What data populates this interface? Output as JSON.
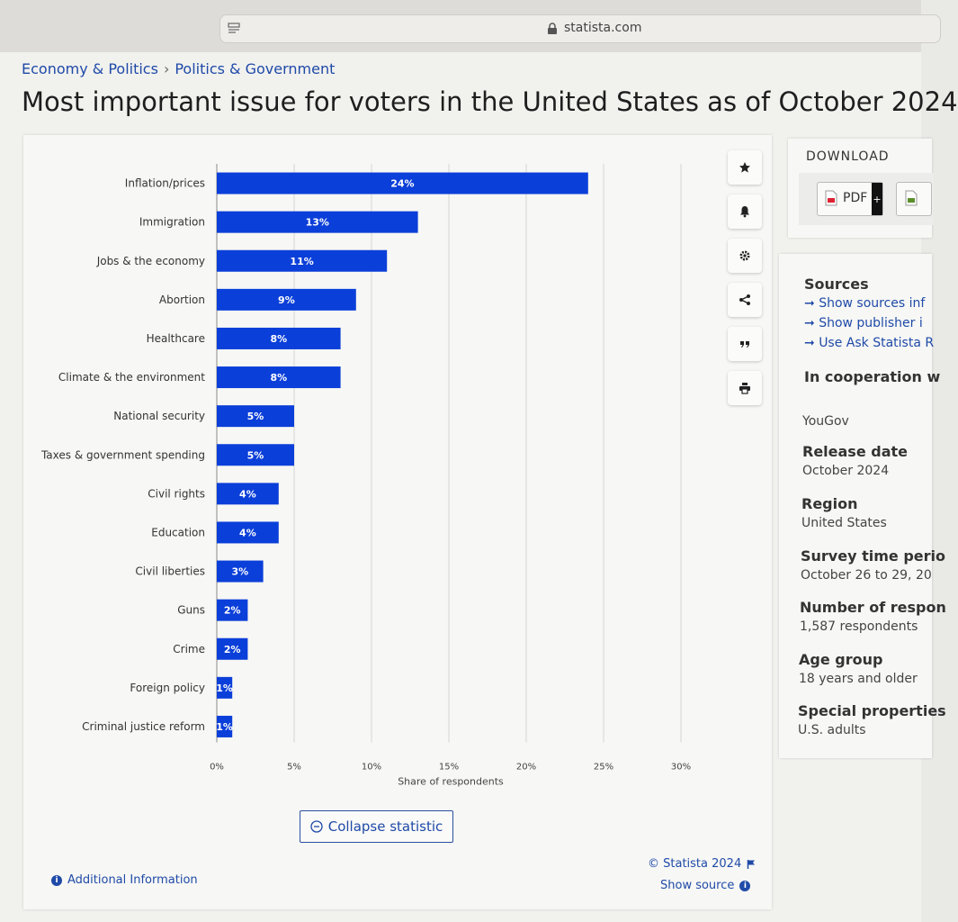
{
  "browser": {
    "url": "statista.com"
  },
  "breadcrumb": {
    "items": [
      "Economy & Politics",
      "Politics & Government"
    ],
    "separator": "›"
  },
  "page": {
    "title": "Most important issue for voters in the United States as of October 2024"
  },
  "chart_data": {
    "type": "bar",
    "orientation": "horizontal",
    "title": "Most important issue for voters in the United States as of October 2024",
    "categories": [
      "Inflation/prices",
      "Immigration",
      "Jobs & the economy",
      "Abortion",
      "Healthcare",
      "Climate & the environment",
      "National security",
      "Taxes & government spending",
      "Civil rights",
      "Education",
      "Civil liberties",
      "Guns",
      "Crime",
      "Foreign policy",
      "Criminal justice reform"
    ],
    "values": [
      24,
      13,
      11,
      9,
      8,
      8,
      5,
      5,
      4,
      4,
      3,
      2,
      2,
      1,
      1
    ],
    "value_labels": [
      "24%",
      "13%",
      "11%",
      "9%",
      "8%",
      "8%",
      "5%",
      "5%",
      "4%",
      "4%",
      "3%",
      "2%",
      "2%",
      "1%",
      "1%"
    ],
    "xlabel": "Share of respondents",
    "ylabel": "",
    "xlim": [
      0,
      30
    ],
    "ticks": [
      0,
      5,
      10,
      15,
      20,
      25,
      30
    ],
    "tick_labels": [
      "0%",
      "5%",
      "10%",
      "15%",
      "20%",
      "25%",
      "30%"
    ],
    "bar_color": "#0b3fd9",
    "grid": true
  },
  "toolbar": {
    "icons": [
      "star-icon",
      "bell-icon",
      "gear-icon",
      "share-icon",
      "quote-icon",
      "print-icon"
    ]
  },
  "actions": {
    "collapse_label": "Collapse statistic",
    "additional_info": "Additional Information",
    "copyright": "© Statista 2024",
    "show_source": "Show source"
  },
  "download": {
    "title": "DOWNLOAD",
    "pdf_label": "PDF",
    "plus": "+"
  },
  "sources": {
    "title": "Sources",
    "links": [
      "Show sources inf",
      "Show publisher i",
      "Use Ask Statista R"
    ],
    "link_arrow": "➞"
  },
  "details": {
    "cooperation_title": "In cooperation w",
    "cooperation_value": "YouGov",
    "release_title": "Release date",
    "release_value": "October 2024",
    "region_title": "Region",
    "region_value": "United States",
    "survey_title": "Survey time perio",
    "survey_value": "October 26 to 29, 20",
    "respondents_title": "Number of respon",
    "respondents_value": "1,587 respondents",
    "age_title": "Age group",
    "age_value": "18 years and older",
    "special_title": "Special properties",
    "special_value": "U.S. adults"
  },
  "colors": {
    "link": "#1f4aa8",
    "bar": "#0b3fd9"
  }
}
